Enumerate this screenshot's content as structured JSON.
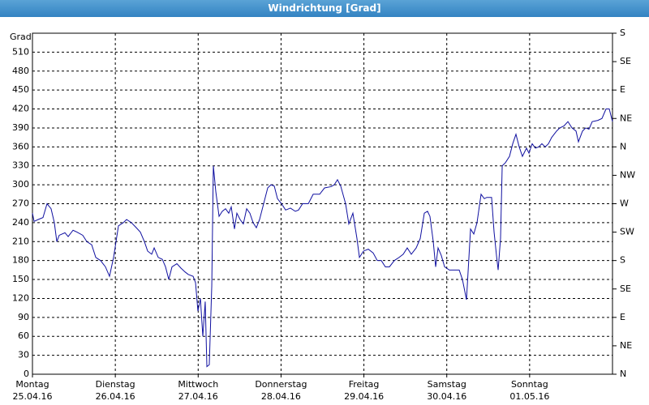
{
  "chart_data": {
    "type": "line",
    "title": "Windrichtung [Grad]",
    "y_label": "Grad",
    "xlim": [
      0,
      7
    ],
    "xticks": [
      {
        "value": 0,
        "label": "Montag",
        "date": "25.04.16"
      },
      {
        "value": 1,
        "label": "Dienstag",
        "date": "26.04.16"
      },
      {
        "value": 2,
        "label": "Mittwoch",
        "date": "27.04.16"
      },
      {
        "value": 3,
        "label": "Donnerstag",
        "date": "28.04.16"
      },
      {
        "value": 4,
        "label": "Freitag",
        "date": "29.04.16"
      },
      {
        "value": 5,
        "label": "Samstag",
        "date": "30.04.16"
      },
      {
        "value": 6,
        "label": "Sonntag",
        "date": "01.05.16"
      }
    ],
    "ylim": [
      0,
      540
    ],
    "yticks": [
      0,
      30,
      60,
      90,
      120,
      150,
      180,
      210,
      240,
      270,
      300,
      330,
      360,
      390,
      420,
      450,
      480,
      510
    ],
    "y2lim": [
      0,
      540
    ],
    "y2ticks": [
      {
        "value": 0,
        "label": "N"
      },
      {
        "value": 45,
        "label": "NE"
      },
      {
        "value": 90,
        "label": "E"
      },
      {
        "value": 135,
        "label": "SE"
      },
      {
        "value": 180,
        "label": "S"
      },
      {
        "value": 225,
        "label": "SW"
      },
      {
        "value": 270,
        "label": "W"
      },
      {
        "value": 315,
        "label": "NW"
      },
      {
        "value": 360,
        "label": "N"
      },
      {
        "value": 405,
        "label": "NE"
      },
      {
        "value": 450,
        "label": "E"
      },
      {
        "value": 495,
        "label": "SE"
      },
      {
        "value": 540,
        "label": "S"
      }
    ],
    "grid": true,
    "series": [
      {
        "color": "#1010a0",
        "x": [
          0,
          0.02,
          0.069,
          0.127,
          0.176,
          0.225,
          0.264,
          0.294,
          0.323,
          0.392,
          0.431,
          0.49,
          0.538,
          0.607,
          0.656,
          0.715,
          0.764,
          0.822,
          0.881,
          0.93,
          0.979,
          1.038,
          1.097,
          1.136,
          1.194,
          1.253,
          1.302,
          1.351,
          1.39,
          1.439,
          1.469,
          1.518,
          1.567,
          1.606,
          1.645,
          1.684,
          1.743,
          1.792,
          1.841,
          1.88,
          1.939,
          1.968,
          1.997,
          2.027,
          2.056,
          2.085,
          2.105,
          2.134,
          2.164,
          2.183,
          2.212,
          2.252,
          2.291,
          2.33,
          2.369,
          2.399,
          2.438,
          2.467,
          2.506,
          2.545,
          2.585,
          2.624,
          2.663,
          2.702,
          2.741,
          2.79,
          2.839,
          2.878,
          2.918,
          2.957,
          3.006,
          3.055,
          3.113,
          3.172,
          3.211,
          3.26,
          3.329,
          3.388,
          3.466,
          3.525,
          3.603,
          3.642,
          3.681,
          3.72,
          3.779,
          3.818,
          3.867,
          3.916,
          3.946,
          3.995,
          4.053,
          4.112,
          4.161,
          4.21,
          4.259,
          4.308,
          4.367,
          4.425,
          4.474,
          4.523,
          4.572,
          4.631,
          4.68,
          4.729,
          4.768,
          4.797,
          4.837,
          4.866,
          4.895,
          4.934,
          4.974,
          5.032,
          5.091,
          5.15,
          5.189,
          5.238,
          5.287,
          5.326,
          5.365,
          5.414,
          5.453,
          5.483,
          5.541,
          5.571,
          5.6,
          5.62,
          5.649,
          5.669,
          5.708,
          5.757,
          5.796,
          5.835,
          5.874,
          5.913,
          5.962,
          5.992,
          6.031,
          6.07,
          6.109,
          6.148,
          6.188,
          6.227,
          6.266,
          6.325,
          6.364,
          6.413,
          6.462,
          6.511,
          6.56,
          6.589,
          6.638,
          6.677,
          6.716,
          6.755,
          6.824,
          6.873,
          6.922,
          6.961,
          7
        ],
        "values": [
          255,
          242,
          245,
          248,
          270,
          262,
          240,
          210,
          220,
          224,
          218,
          228,
          225,
          220,
          210,
          205,
          185,
          180,
          170,
          155,
          185,
          235,
          240,
          245,
          240,
          232,
          225,
          210,
          195,
          190,
          200,
          185,
          182,
          170,
          150,
          170,
          175,
          168,
          162,
          158,
          155,
          145,
          100,
          120,
          60,
          115,
          12,
          15,
          140,
          330,
          290,
          250,
          258,
          262,
          255,
          265,
          230,
          255,
          245,
          238,
          262,
          255,
          240,
          232,
          245,
          270,
          295,
          300,
          298,
          278,
          270,
          260,
          263,
          258,
          260,
          270,
          270,
          285,
          285,
          295,
          297,
          300,
          308,
          298,
          270,
          238,
          255,
          215,
          185,
          195,
          198,
          192,
          180,
          180,
          170,
          170,
          180,
          185,
          190,
          200,
          190,
          200,
          215,
          255,
          258,
          250,
          210,
          170,
          200,
          188,
          170,
          165,
          165,
          165,
          150,
          118,
          230,
          222,
          240,
          285,
          278,
          280,
          280,
          225,
          188,
          165,
          215,
          330,
          335,
          345,
          365,
          380,
          360,
          345,
          358,
          350,
          365,
          358,
          360,
          365,
          360,
          365,
          375,
          385,
          390,
          393,
          400,
          390,
          385,
          368,
          385,
          390,
          388,
          400,
          402,
          405,
          420,
          420,
          400
        ]
      }
    ]
  }
}
